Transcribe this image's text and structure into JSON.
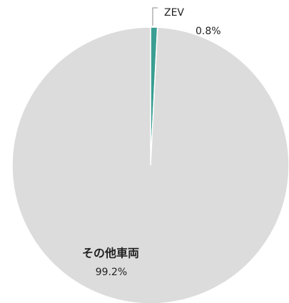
{
  "chart_data": {
    "type": "pie",
    "categories": [
      "ZEV",
      "その他車両"
    ],
    "values": [
      0.8,
      99.2
    ],
    "value_labels": [
      "0.8%",
      "99.2%"
    ],
    "colors": [
      "#3a9e92",
      "#dcdcdc"
    ]
  }
}
